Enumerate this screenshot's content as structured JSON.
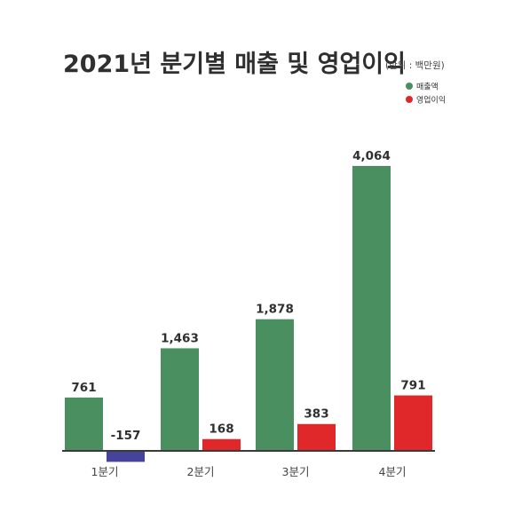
{
  "chart_data": {
    "type": "bar",
    "title": "2021년 분기별 매출 및 영업이익",
    "unit": "(단위 : 백만원)",
    "categories": [
      "1분기",
      "2분기",
      "3분기",
      "4분기"
    ],
    "series": [
      {
        "name": "매출액",
        "color": "#4a8f5f",
        "values": [
          761,
          1463,
          1878,
          4064
        ],
        "labels": [
          "761",
          "1,463",
          "1,878",
          "4,064"
        ]
      },
      {
        "name": "영업이익",
        "color": "#e0282b",
        "negative_color": "#46439a",
        "values": [
          -157,
          168,
          383,
          791
        ],
        "labels": [
          "-157",
          "168",
          "383",
          "791"
        ]
      }
    ],
    "legend_position": "top-right",
    "grid": false
  }
}
